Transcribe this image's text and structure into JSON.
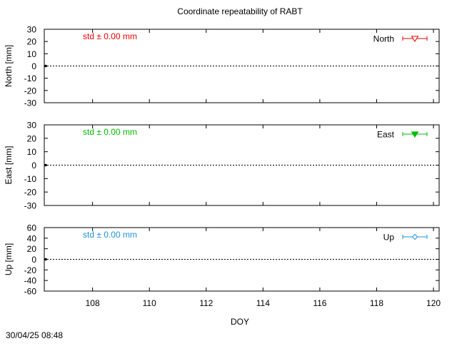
{
  "title": "Coordinate repeatability of RABT",
  "timestamp": "30/04/25 08:48",
  "chart_data": {
    "type": "scatter",
    "xlabel": "DOY",
    "xlim": [
      106.3,
      120.2
    ],
    "xticks": [
      108,
      110,
      112,
      114,
      116,
      118,
      120
    ],
    "panels": [
      {
        "name": "north",
        "ylabel": "North [mm]",
        "ylim": [
          -30,
          30
        ],
        "yticks": [
          30,
          20,
          10,
          0,
          -10,
          -20,
          -30
        ],
        "std_label": "std ± 0.00 mm",
        "color": "#ee0000",
        "legend": "North",
        "marker": "triangle-down-open",
        "points": [
          {
            "x": 106.35,
            "y": 0
          }
        ]
      },
      {
        "name": "east",
        "ylabel": "East [mm]",
        "ylim": [
          -30,
          30
        ],
        "yticks": [
          30,
          20,
          10,
          0,
          -10,
          -20,
          -30
        ],
        "std_label": "std ± 0.00 mm",
        "color": "#00bb00",
        "legend": "East",
        "marker": "triangle-down-filled",
        "points": [
          {
            "x": 106.35,
            "y": 0
          }
        ]
      },
      {
        "name": "up",
        "ylabel": "Up [mm]",
        "ylim": [
          -60,
          60
        ],
        "yticks": [
          60,
          40,
          20,
          0,
          -20,
          -40,
          -60
        ],
        "std_label": "std ± 0.00 mm",
        "color": "#1e90dd",
        "legend": "Up",
        "marker": "diamond-open",
        "points": [
          {
            "x": 106.35,
            "y": 0
          }
        ]
      }
    ]
  }
}
